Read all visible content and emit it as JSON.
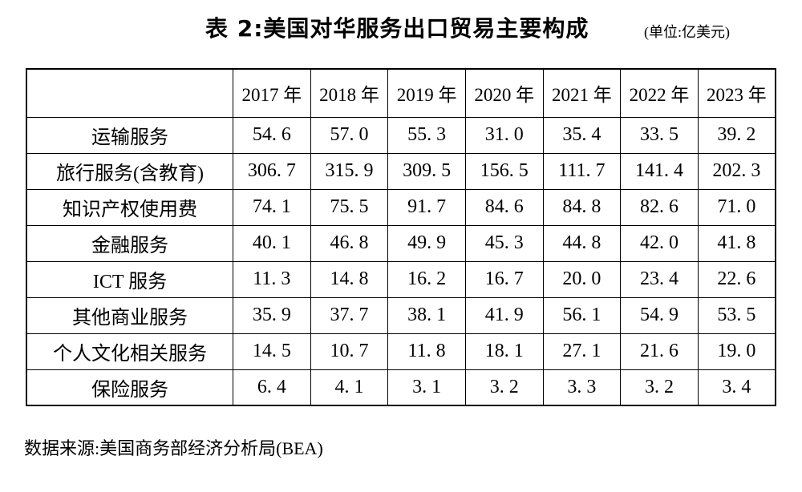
{
  "page": {
    "title": "表 2:美国对华服务出口贸易主要构成",
    "unit_note": "(单位:亿美元)",
    "source_note": "数据来源:美国商务部经济分析局(BEA)"
  },
  "colors": {
    "background": "#ffffff",
    "text": "#000000",
    "border": "#000000"
  },
  "chart_data": {
    "type": "table",
    "title": "表 2:美国对华服务出口贸易主要构成",
    "unit": "亿美元",
    "categories": [
      "2017 年",
      "2018 年",
      "2019 年",
      "2020 年",
      "2021 年",
      "2022 年",
      "2023 年"
    ],
    "series": [
      {
        "name": "运输服务",
        "values": [
          54.6,
          57.0,
          55.3,
          31.0,
          35.4,
          33.5,
          39.2
        ]
      },
      {
        "name": "旅行服务(含教育)",
        "values": [
          306.7,
          315.9,
          309.5,
          156.5,
          111.7,
          141.4,
          202.3
        ]
      },
      {
        "name": "知识产权使用费",
        "values": [
          74.1,
          75.5,
          91.7,
          84.6,
          84.8,
          82.6,
          71.0
        ]
      },
      {
        "name": "金融服务",
        "values": [
          40.1,
          46.8,
          49.9,
          45.3,
          44.8,
          42.0,
          41.8
        ]
      },
      {
        "name": "ICT 服务",
        "values": [
          11.3,
          14.8,
          16.2,
          16.7,
          20.0,
          23.4,
          22.6
        ]
      },
      {
        "name": "其他商业服务",
        "values": [
          35.9,
          37.7,
          38.1,
          41.9,
          56.1,
          54.9,
          53.5
        ]
      },
      {
        "name": "个人文化相关服务",
        "values": [
          14.5,
          10.7,
          11.8,
          18.1,
          27.1,
          21.6,
          19.0
        ]
      },
      {
        "name": "保险服务",
        "values": [
          6.4,
          4.1,
          3.1,
          3.2,
          3.3,
          3.2,
          3.4
        ]
      }
    ],
    "source": "数据来源:美国商务部经济分析局(BEA)",
    "layout": {
      "grid": true,
      "header_row": "years",
      "first_column": "service-category"
    }
  }
}
